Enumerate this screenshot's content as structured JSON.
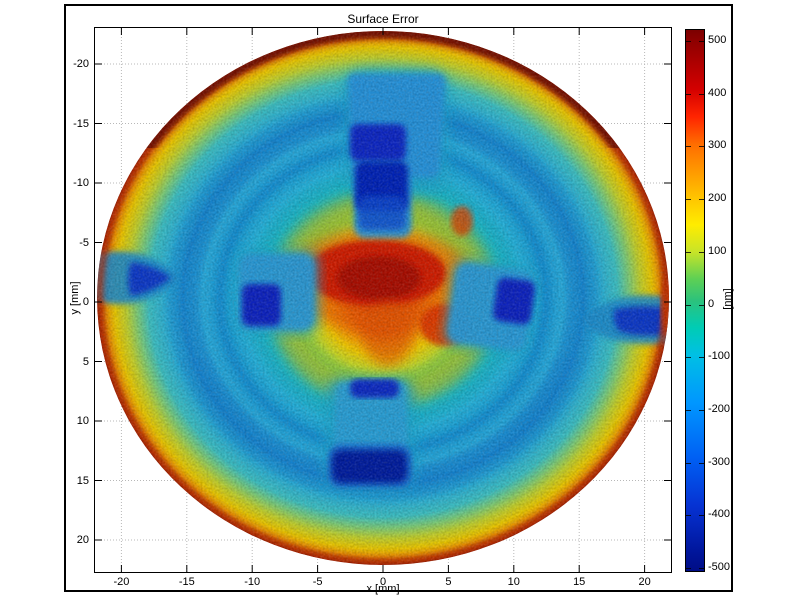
{
  "figure": {
    "title": "Surface Error",
    "background": "#ffffff",
    "border_color": "#000000"
  },
  "axes": {
    "xlabel": "x [mm]",
    "ylabel": "y [mm]",
    "xticks": [
      -20,
      -15,
      -10,
      -5,
      0,
      5,
      10,
      15,
      20
    ],
    "yticks": [
      -20,
      -15,
      -10,
      -5,
      0,
      5,
      10,
      15,
      20
    ],
    "xlim": [
      -22,
      22
    ],
    "ylim": [
      -23,
      23
    ],
    "grid": "dotted"
  },
  "colorbar": {
    "label": "[nm]",
    "ticks": [
      500,
      400,
      300,
      200,
      100,
      0,
      -100,
      -200,
      -300,
      -400,
      -500
    ],
    "range": [
      -520,
      520
    ],
    "colormap": "jet",
    "gradient": [
      {
        "p": 0,
        "c": "#7c0000"
      },
      {
        "p": 2,
        "c": "#8e0000"
      },
      {
        "p": 11,
        "c": "#d40000"
      },
      {
        "p": 16,
        "c": "#ff2400"
      },
      {
        "p": 21,
        "c": "#ff6c00"
      },
      {
        "p": 31,
        "c": "#ffc400"
      },
      {
        "p": 36,
        "c": "#ffec00"
      },
      {
        "p": 41,
        "c": "#c8e428"
      },
      {
        "p": 46,
        "c": "#5ed054"
      },
      {
        "p": 50,
        "c": "#2cc27c"
      },
      {
        "p": 55,
        "c": "#00ccb4"
      },
      {
        "p": 60,
        "c": "#00c0e4"
      },
      {
        "p": 69,
        "c": "#0096ff"
      },
      {
        "p": 79,
        "c": "#0060f4"
      },
      {
        "p": 88,
        "c": "#0632d2"
      },
      {
        "p": 97,
        "c": "#001498"
      },
      {
        "p": 100,
        "c": "#000d86"
      }
    ]
  },
  "chart_data": {
    "type": "heatmap",
    "title": "Surface Error",
    "xlabel": "x [mm]",
    "ylabel": "y [mm]",
    "value_label": "[nm]",
    "xlim": [
      -22,
      22
    ],
    "ylim": [
      -23,
      23
    ],
    "value_range": [
      -500,
      500
    ],
    "colormap": "jet",
    "shape": "circular optical aperture, radius ~22 mm, centered at (0,0), mottled surface texture with concentric ring striations",
    "features": [
      {
        "name": "central red peak blob, irregular cross-like shape",
        "x": 0,
        "y": -1.5,
        "extent_mm": 5,
        "value_nm": 460
      },
      {
        "name": "secondary red lobe south-east of center",
        "x": 4.5,
        "y": 2,
        "value_nm": 380
      },
      {
        "name": "inner high ring (yellow) around center",
        "r_mm": 7.5,
        "value_nm": 150
      },
      {
        "name": "mount-pad depression north (blue, trapezoid with dark cores)",
        "x": -0.5,
        "y": -14,
        "value_nm": -470
      },
      {
        "name": "mount-pad depression south (blue bar, dark core)",
        "x": -2,
        "y": 14,
        "value_nm": -490
      },
      {
        "name": "mount-pad depression west inner (rounded square, dark core)",
        "x": -9.5,
        "y": 0.5,
        "value_nm": -430
      },
      {
        "name": "mount-pad depression east inner (rounded square, dark core, tilted)",
        "x": 9,
        "y": 0.5,
        "value_nm": -430
      },
      {
        "name": "edge pad west (bullet shape pointing inward)",
        "x": -21,
        "y": -1.5,
        "value_nm": -380
      },
      {
        "name": "edge pad east (bullet shape pointing inward)",
        "x": 20.5,
        "y": 1.5,
        "value_nm": -380
      },
      {
        "name": "broad mid annulus (cyan with darker blue ring striations)",
        "r_mm": 13,
        "value_nm": -130
      },
      {
        "name": "outer high ring (yellow-orange)",
        "r_mm": 20.5,
        "value_nm": 180
      },
      {
        "name": "rim (dark red, thickest along top edge)",
        "r_mm": 22,
        "value_nm": 500
      }
    ],
    "radial_profile": [
      {
        "r_mm": 0,
        "nm": 470
      },
      {
        "r_mm": 2,
        "nm": 380
      },
      {
        "r_mm": 4,
        "nm": 150
      },
      {
        "r_mm": 6,
        "nm": 30
      },
      {
        "r_mm": 8,
        "nm": -60
      },
      {
        "r_mm": 10,
        "nm": -100
      },
      {
        "r_mm": 13,
        "nm": -140
      },
      {
        "r_mm": 16,
        "nm": -90
      },
      {
        "r_mm": 18,
        "nm": 40
      },
      {
        "r_mm": 20,
        "nm": 160
      },
      {
        "r_mm": 21.5,
        "nm": 320
      },
      {
        "r_mm": 22,
        "nm": 500
      }
    ]
  }
}
